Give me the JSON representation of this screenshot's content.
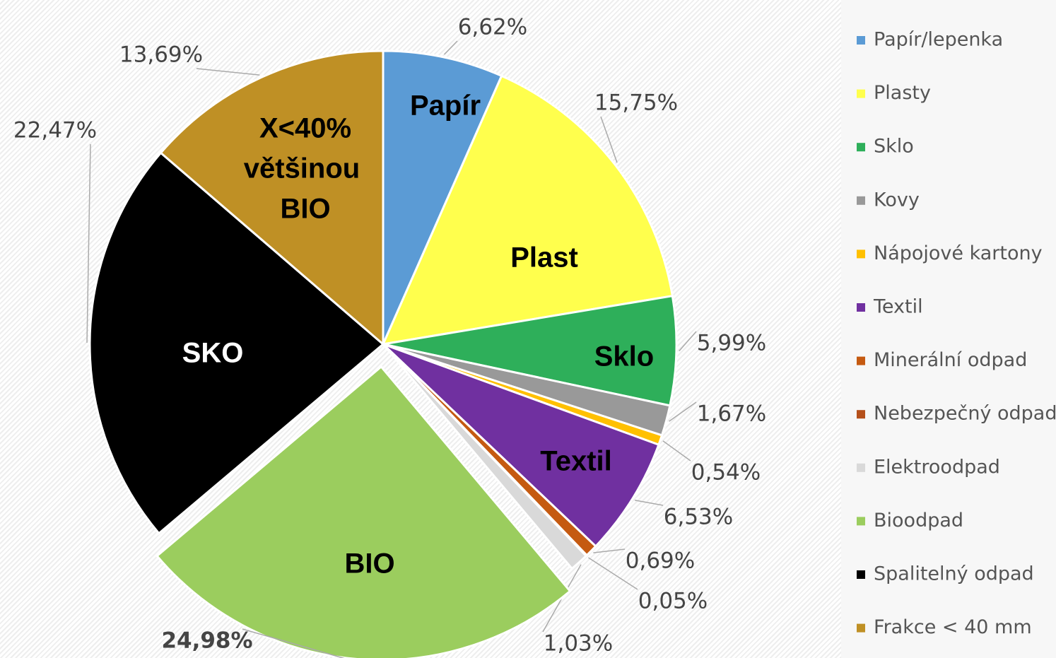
{
  "chart_data": {
    "type": "pie",
    "categories": [
      "Papír/lepenka",
      "Plasty",
      "Sklo",
      "Kovy",
      "Nápojové kartony",
      "Textil",
      "Minerální odpad",
      "Nebezpečný odpad",
      "Elektroodpad",
      "Bioodpad",
      "Spalitelný odpad",
      "Frakce < 40 mm"
    ],
    "values": [
      6.62,
      15.75,
      5.99,
      1.67,
      0.54,
      6.53,
      0.69,
      0.05,
      1.03,
      24.98,
      22.47,
      13.69
    ],
    "value_labels": [
      "6,62%",
      "15,75%",
      "5,99%",
      "1,67%",
      "0,54%",
      "6,53%",
      "0,69%",
      "0,05%",
      "1,03%",
      "24,98%",
      "22,47%",
      "13,69%"
    ],
    "colors": [
      "#5b9bd5",
      "#ffff4d",
      "#2eaf5a",
      "#999999",
      "#ffc000",
      "#7030a0",
      "#c55a11",
      "#b5501a",
      "#d9d9d9",
      "#9bcd5e",
      "#000000",
      "#bf9025"
    ],
    "slice_labels": [
      [
        "Papír"
      ],
      [
        "Plast"
      ],
      [
        "Sklo"
      ],
      null,
      null,
      [
        "Textil"
      ],
      null,
      null,
      null,
      [
        "BIO"
      ],
      [
        "SKO"
      ],
      [
        "X<40%",
        "většinou",
        "BIO"
      ]
    ],
    "legend": "right"
  }
}
